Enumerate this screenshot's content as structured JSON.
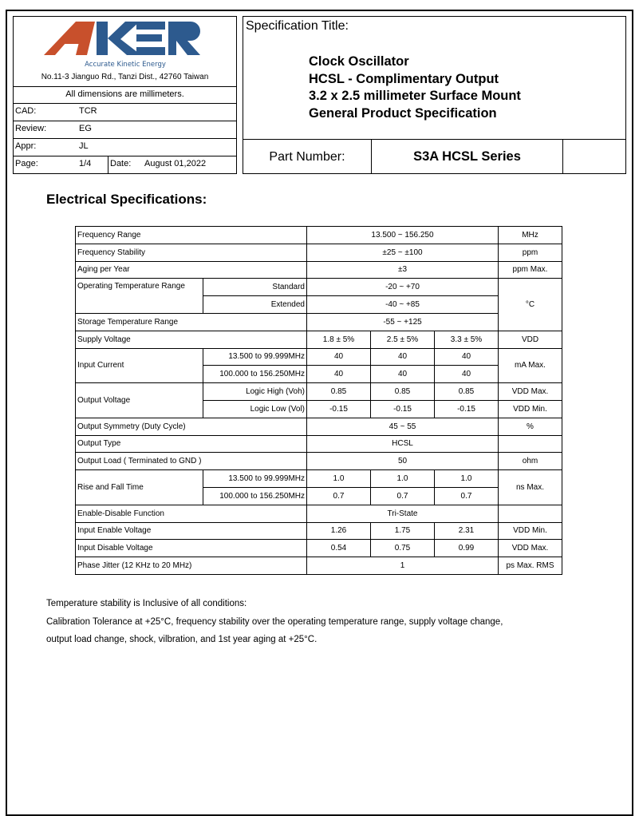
{
  "header": {
    "logo_text": "AKER",
    "tagline": "Accurate Kinetic Energy",
    "address": "No.11-3 Jianguo Rd., Tanzi Dist., 42760 Taiwan",
    "dimensions_note": "All dimensions are millimeters.",
    "cad_label": "CAD:",
    "cad_value": "TCR",
    "review_label": "Review:",
    "review_value": "EG",
    "appr_label": "Appr:",
    "appr_value": "JL",
    "page_label": "Page:",
    "page_value": "1/4",
    "date_label": "Date:",
    "date_value": "August 01,2022",
    "spec_title_label": "Specification Title:",
    "titles": [
      "Clock Oscillator",
      "HCSL - Complimentary Output",
      "3.2 x 2.5 millimeter Surface Mount",
      "General Product Specification"
    ],
    "part_number_label": "Part Number:",
    "part_number_value": "S3A HCSL Series"
  },
  "section_title": "Electrical Specifications:",
  "table": {
    "freq_range": [
      "Frequency Range",
      "13.500 ~ 156.250",
      "MHz"
    ],
    "freq_stability": [
      "Frequency Stability",
      "±25  ~  ±100",
      "ppm"
    ],
    "aging": [
      "Aging per Year",
      "±3",
      "ppm Max."
    ],
    "op_temp": [
      "Operating Temperature Range",
      "Standard",
      "-20  ~  +70",
      "Extended",
      "-40  ~  +85",
      "°C"
    ],
    "storage_temp": [
      "Storage Temperature Range",
      "-55  ~  +125"
    ],
    "supply": [
      "Supply Voltage",
      "1.8 ± 5%",
      "2.5 ± 5%",
      "3.3 ± 5%",
      "VDD"
    ],
    "input_current": [
      "Input Current",
      "13.500 to 99.999MHz",
      "40",
      "40",
      "40",
      "100.000 to 156.250MHz",
      "40",
      "40",
      "40",
      "mA Max."
    ],
    "output_voltage": [
      "Output Voltage",
      "Logic High (Voh)",
      "0.85",
      "0.85",
      "0.85",
      "VDD Max.",
      "Logic Low (Vol)",
      "-0.15",
      "-0.15",
      "-0.15",
      "VDD Min."
    ],
    "symmetry": [
      "Output Symmetry (Duty Cycle)",
      "45 ~ 55",
      "%"
    ],
    "output_type": [
      "Output Type",
      "HCSL",
      ""
    ],
    "output_load": [
      "Output Load ( Terminated to GND )",
      "50",
      "ohm"
    ],
    "rise_fall": [
      "Rise and Fall Time",
      "13.500 to 99.999MHz",
      "1.0",
      "1.0",
      "1.0",
      "100.000 to 156.250MHz",
      "0.7",
      "0.7",
      "0.7",
      "ns Max."
    ],
    "enable_disable": [
      "Enable-Disable Function",
      "Tri-State",
      ""
    ],
    "input_enable": [
      "Input Enable Voltage",
      "1.26",
      "1.75",
      "2.31",
      "VDD Min."
    ],
    "input_disable": [
      "Input Disable Voltage",
      "0.54",
      "0.75",
      "0.99",
      "VDD Max."
    ],
    "phase_jitter": [
      "Phase Jitter (12 KHz to 20 MHz)",
      "1",
      "ps  Max. RMS"
    ]
  },
  "notes": [
    "Temperature stability is Inclusive of all conditions:",
    "Calibration Tolerance at +25°C, frequency stability over the operating temperature range, supply voltage change,",
    "output load change, shock, vilbration, and 1st year aging at +25°C."
  ],
  "colors": {
    "logo_orange": "#c8502c",
    "logo_blue": "#2d5a8e"
  }
}
